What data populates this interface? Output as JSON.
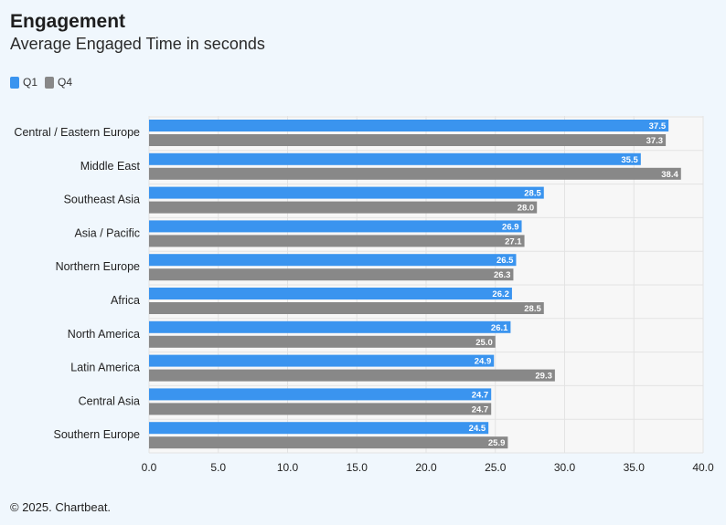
{
  "header": {
    "title": "Engagement",
    "subtitle": "Average Engaged Time in seconds"
  },
  "footer": {
    "text": "© 2025. Chartbeat."
  },
  "colors": {
    "q1": "#3a94ef",
    "q4": "#888888",
    "plot_bg": "#f7f7f7",
    "grid": "#e3e3e3"
  },
  "chart_data": {
    "type": "bar",
    "orientation": "horizontal",
    "title": "Engagement",
    "subtitle": "Average Engaged Time in seconds",
    "categories": [
      "Central / Eastern Europe",
      "Middle East",
      "Southeast Asia",
      "Asia / Pacific",
      "Northern Europe",
      "Africa",
      "North America",
      "Latin America",
      "Central Asia",
      "Southern Europe"
    ],
    "series": [
      {
        "name": "Q1",
        "color": "#3a94ef",
        "values": [
          37.5,
          35.5,
          28.5,
          26.9,
          26.5,
          26.2,
          26.1,
          24.9,
          24.7,
          24.5
        ]
      },
      {
        "name": "Q4",
        "color": "#888888",
        "values": [
          37.3,
          38.4,
          28.0,
          27.1,
          26.3,
          28.5,
          25.0,
          29.3,
          24.7,
          25.9
        ]
      }
    ],
    "xlim": [
      0,
      40
    ],
    "xticks": [
      "0.0",
      "5.0",
      "10.0",
      "15.0",
      "20.0",
      "25.0",
      "30.0",
      "35.0",
      "40.0"
    ],
    "grid": true,
    "legend_position": "top-left",
    "data_labels": true
  }
}
